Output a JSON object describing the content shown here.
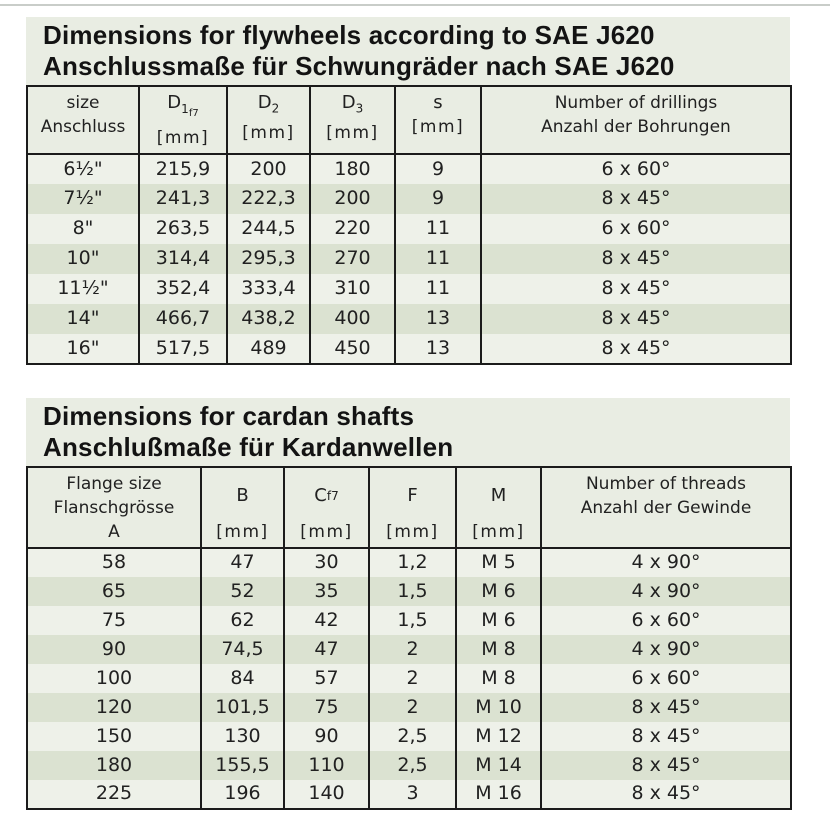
{
  "colors": {
    "panel_bg": "#e9ede3",
    "row_light": "#eef1e9",
    "row_dark": "#dbe2d1",
    "border": "#1b1b1b",
    "text": "#212121"
  },
  "flywheels": {
    "title_en": "Dimensions for flywheels according to SAE J620",
    "title_de": "Anschlussmaße für Schwungräder nach SAE J620",
    "header": {
      "size": {
        "en": "size",
        "de": "Anschluss"
      },
      "d1": {
        "sym": "D",
        "sub": "1",
        "subsub": "f7",
        "unit": "[mm]"
      },
      "d2": {
        "sym": "D",
        "sub": "2",
        "unit": "[mm]"
      },
      "d3": {
        "sym": "D",
        "sub": "3",
        "unit": "[mm]"
      },
      "s": {
        "sym": "s",
        "unit": "[mm]"
      },
      "drillings": {
        "en": "Number of drillings",
        "de": "Anzahl der Bohrungen"
      }
    },
    "rows": [
      [
        "6½\"",
        "215,9",
        "200",
        "180",
        "9",
        "6 x 60°"
      ],
      [
        "7½\"",
        "241,3",
        "222,3",
        "200",
        "9",
        "8 x 45°"
      ],
      [
        "8\"",
        "263,5",
        "244,5",
        "220",
        "11",
        "6 x 60°"
      ],
      [
        "10\"",
        "314,4",
        "295,3",
        "270",
        "11",
        "8 x 45°"
      ],
      [
        "11½\"",
        "352,4",
        "333,4",
        "310",
        "11",
        "8 x 45°"
      ],
      [
        "14\"",
        "466,7",
        "438,2",
        "400",
        "13",
        "8 x 45°"
      ],
      [
        "16\"",
        "517,5",
        "489",
        "450",
        "13",
        "8 x 45°"
      ]
    ]
  },
  "cardan": {
    "title_en": "Dimensions for cardan shafts",
    "title_de": "Anschlußmaße für Kardanwellen",
    "header": {
      "flange": {
        "en": "Flange size",
        "de": "Flanschgrösse",
        "sym": "A"
      },
      "b": {
        "sym": "B",
        "unit": "[mm]"
      },
      "c": {
        "sym": "C",
        "sub": "f7",
        "unit": "[mm]"
      },
      "f": {
        "sym": "F",
        "unit": "[mm]"
      },
      "m": {
        "sym": "M",
        "unit": "[mm]"
      },
      "threads": {
        "en": "Number of threads",
        "de": "Anzahl der Gewinde"
      }
    },
    "rows": [
      [
        "58",
        "47",
        "30",
        "1,2",
        "M 5",
        "4 x 90°"
      ],
      [
        "65",
        "52",
        "35",
        "1,5",
        "M 6",
        "4 x 90°"
      ],
      [
        "75",
        "62",
        "42",
        "1,5",
        "M 6",
        "6 x 60°"
      ],
      [
        "90",
        "74,5",
        "47",
        "2",
        "M 8",
        "4 x 90°"
      ],
      [
        "100",
        "84",
        "57",
        "2",
        "M 8",
        "6 x 60°"
      ],
      [
        "120",
        "101,5",
        "75",
        "2",
        "M 10",
        "8 x 45°"
      ],
      [
        "150",
        "130",
        "90",
        "2,5",
        "M 12",
        "8 x 45°"
      ],
      [
        "180",
        "155,5",
        "110",
        "2,5",
        "M 14",
        "8 x 45°"
      ],
      [
        "225",
        "196",
        "140",
        "3",
        "M 16",
        "8 x 45°"
      ]
    ]
  }
}
